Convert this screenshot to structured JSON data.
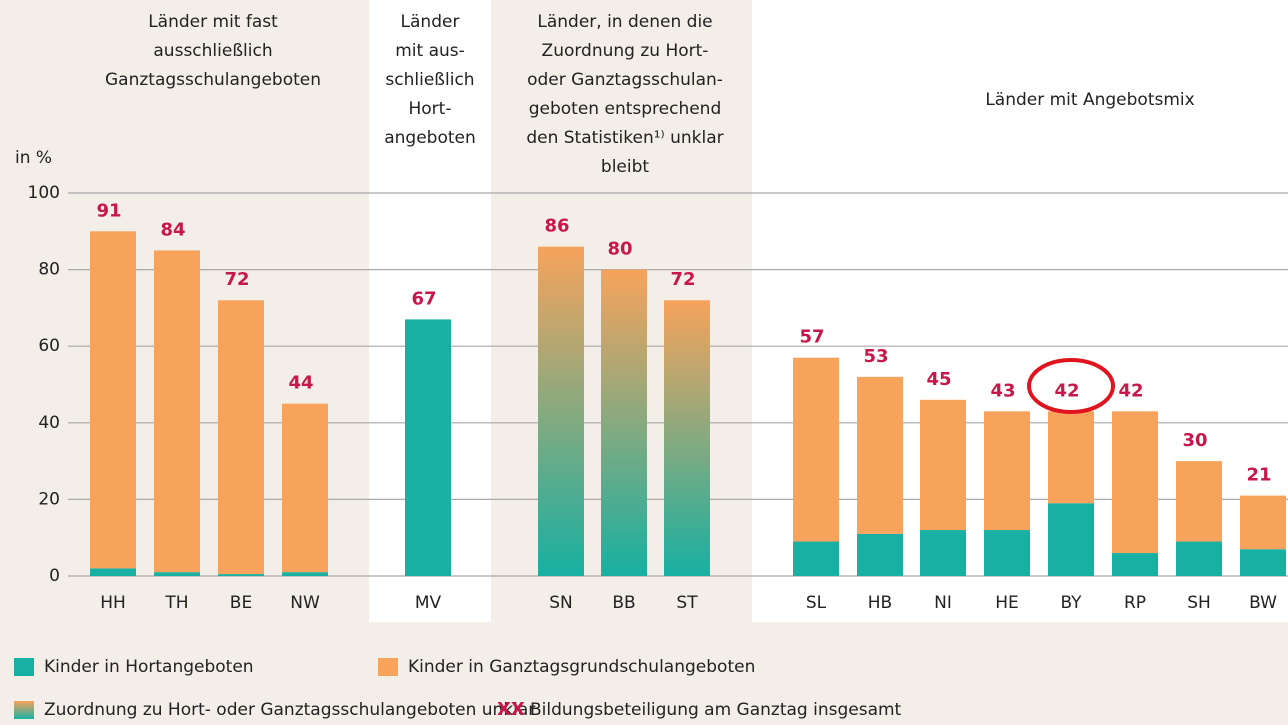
{
  "chart_data": {
    "type": "stacked-bar",
    "y_label": "in %",
    "group_headers": [
      [
        "Länder mit fast",
        "ausschließlich",
        "Ganztagsschulangeboten"
      ],
      [
        "Länder",
        "mit aus-",
        "schließlich",
        "Hort-",
        "angeboten"
      ],
      [
        "Länder, in denen die",
        "Zuordnung zu Hort-",
        "oder Ganztagsschulan-",
        "geboten entsprechend",
        "den Statistiken¹⁾ unklar",
        "bleibt"
      ],
      [
        "Länder mit Angebotsmix"
      ]
    ],
    "categories": [
      "HH",
      "TH",
      "BE",
      "NW",
      "MV",
      "SN",
      "BB",
      "ST",
      "SL",
      "HB",
      "NI",
      "HE",
      "BY",
      "RP",
      "SH",
      "BW"
    ],
    "series": [
      {
        "name": "Kinder in Hortangeboten",
        "color": "#17b0a2",
        "values": [
          2,
          1,
          0.5,
          1,
          67,
          null,
          null,
          null,
          9,
          11,
          12,
          12,
          19,
          6,
          9,
          7
        ]
      },
      {
        "name": "Kinder in Ganztagsgrundschulangeboten",
        "color": "#f7a35c",
        "values": [
          88,
          84,
          71.5,
          44,
          null,
          null,
          null,
          null,
          48,
          41,
          34,
          31,
          24,
          37,
          21,
          14
        ]
      },
      {
        "name": "Zuordnung zu Hort- oder Ganztagsschulangeboten unklar",
        "gradient": [
          "#f7a35c",
          "#17b0a2"
        ],
        "values": [
          null,
          null,
          null,
          null,
          null,
          86,
          80,
          72,
          null,
          null,
          null,
          null,
          null,
          null,
          null,
          null
        ]
      }
    ],
    "totals": {
      "symbol": "XX",
      "name": "Bildungsbeteiligung am Ganztag insgesamt",
      "color": "#c8174a",
      "values": [
        91,
        84,
        72,
        44,
        67,
        86,
        80,
        72,
        57,
        53,
        45,
        43,
        42,
        42,
        30,
        21
      ]
    },
    "ylim": [
      0,
      100
    ],
    "yticks": [
      0,
      20,
      40,
      60,
      80,
      100
    ],
    "grid": true
  }
}
